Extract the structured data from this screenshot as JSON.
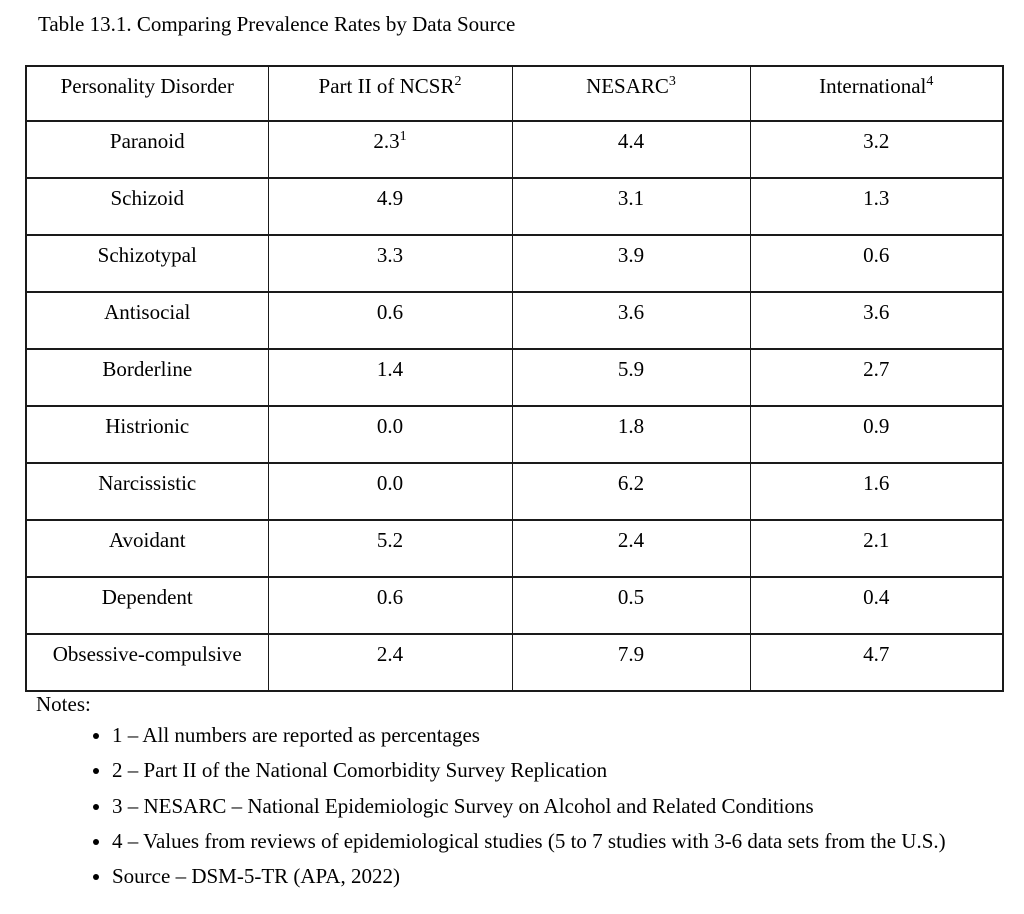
{
  "title": "Table 13.1. Comparing Prevalence Rates by Data Source",
  "table": {
    "headers": [
      {
        "text": "Personality Disorder"
      },
      {
        "text": "Part II of NCSR",
        "sup": "2"
      },
      {
        "text": "NESARC",
        "sup": "3"
      },
      {
        "text": "International",
        "sup": "4"
      }
    ],
    "rows": [
      {
        "disorder": "Paranoid",
        "ncsr": "2.3",
        "ncsr_sup": "1",
        "nesarc": "4.4",
        "international": "3.2"
      },
      {
        "disorder": "Schizoid",
        "ncsr": "4.9",
        "nesarc": "3.1",
        "international": "1.3"
      },
      {
        "disorder": "Schizotypal",
        "ncsr": "3.3",
        "nesarc": "3.9",
        "international": "0.6"
      },
      {
        "disorder": "Antisocial",
        "ncsr": "0.6",
        "nesarc": "3.6",
        "international": "3.6"
      },
      {
        "disorder": "Borderline",
        "ncsr": "1.4",
        "nesarc": "5.9",
        "international": "2.7"
      },
      {
        "disorder": "Histrionic",
        "ncsr": "0.0",
        "nesarc": "1.8",
        "international": "0.9"
      },
      {
        "disorder": "Narcissistic",
        "ncsr": "0.0",
        "nesarc": "6.2",
        "international": "1.6"
      },
      {
        "disorder": "Avoidant",
        "ncsr": "5.2",
        "nesarc": "2.4",
        "international": "2.1"
      },
      {
        "disorder": "Dependent",
        "ncsr": "0.6",
        "nesarc": "0.5",
        "international": "0.4"
      },
      {
        "disorder": "Obsessive-compulsive",
        "ncsr": "2.4",
        "nesarc": "7.9",
        "international": "4.7"
      }
    ]
  },
  "notes": {
    "label": "Notes:",
    "items": [
      "1 – All numbers are reported as percentages",
      "2 – Part II of the National Comorbidity Survey Replication",
      "3 – NESARC – National Epidemiologic Survey on Alcohol and Related Conditions",
      "4 – Values from reviews of epidemiological studies (5 to 7 studies with 3-6 data sets from the U.S.)",
      "Source – DSM-5-TR (APA, 2022)"
    ]
  }
}
